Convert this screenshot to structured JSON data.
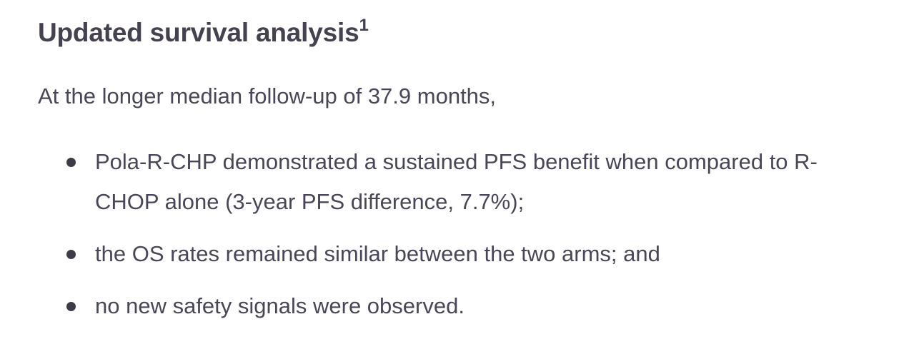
{
  "section": {
    "title": "Updated survival analysis",
    "footnote_ref": "1",
    "intro": "At the longer median follow-up of 37.9 months,",
    "bullets": [
      "Pola-R-CHP demonstrated a sustained PFS benefit when compared to R-CHOP alone (3-year PFS difference, 7.7%);",
      "the OS rates remained similar between the two arms; and",
      "no new safety signals were observed."
    ]
  }
}
